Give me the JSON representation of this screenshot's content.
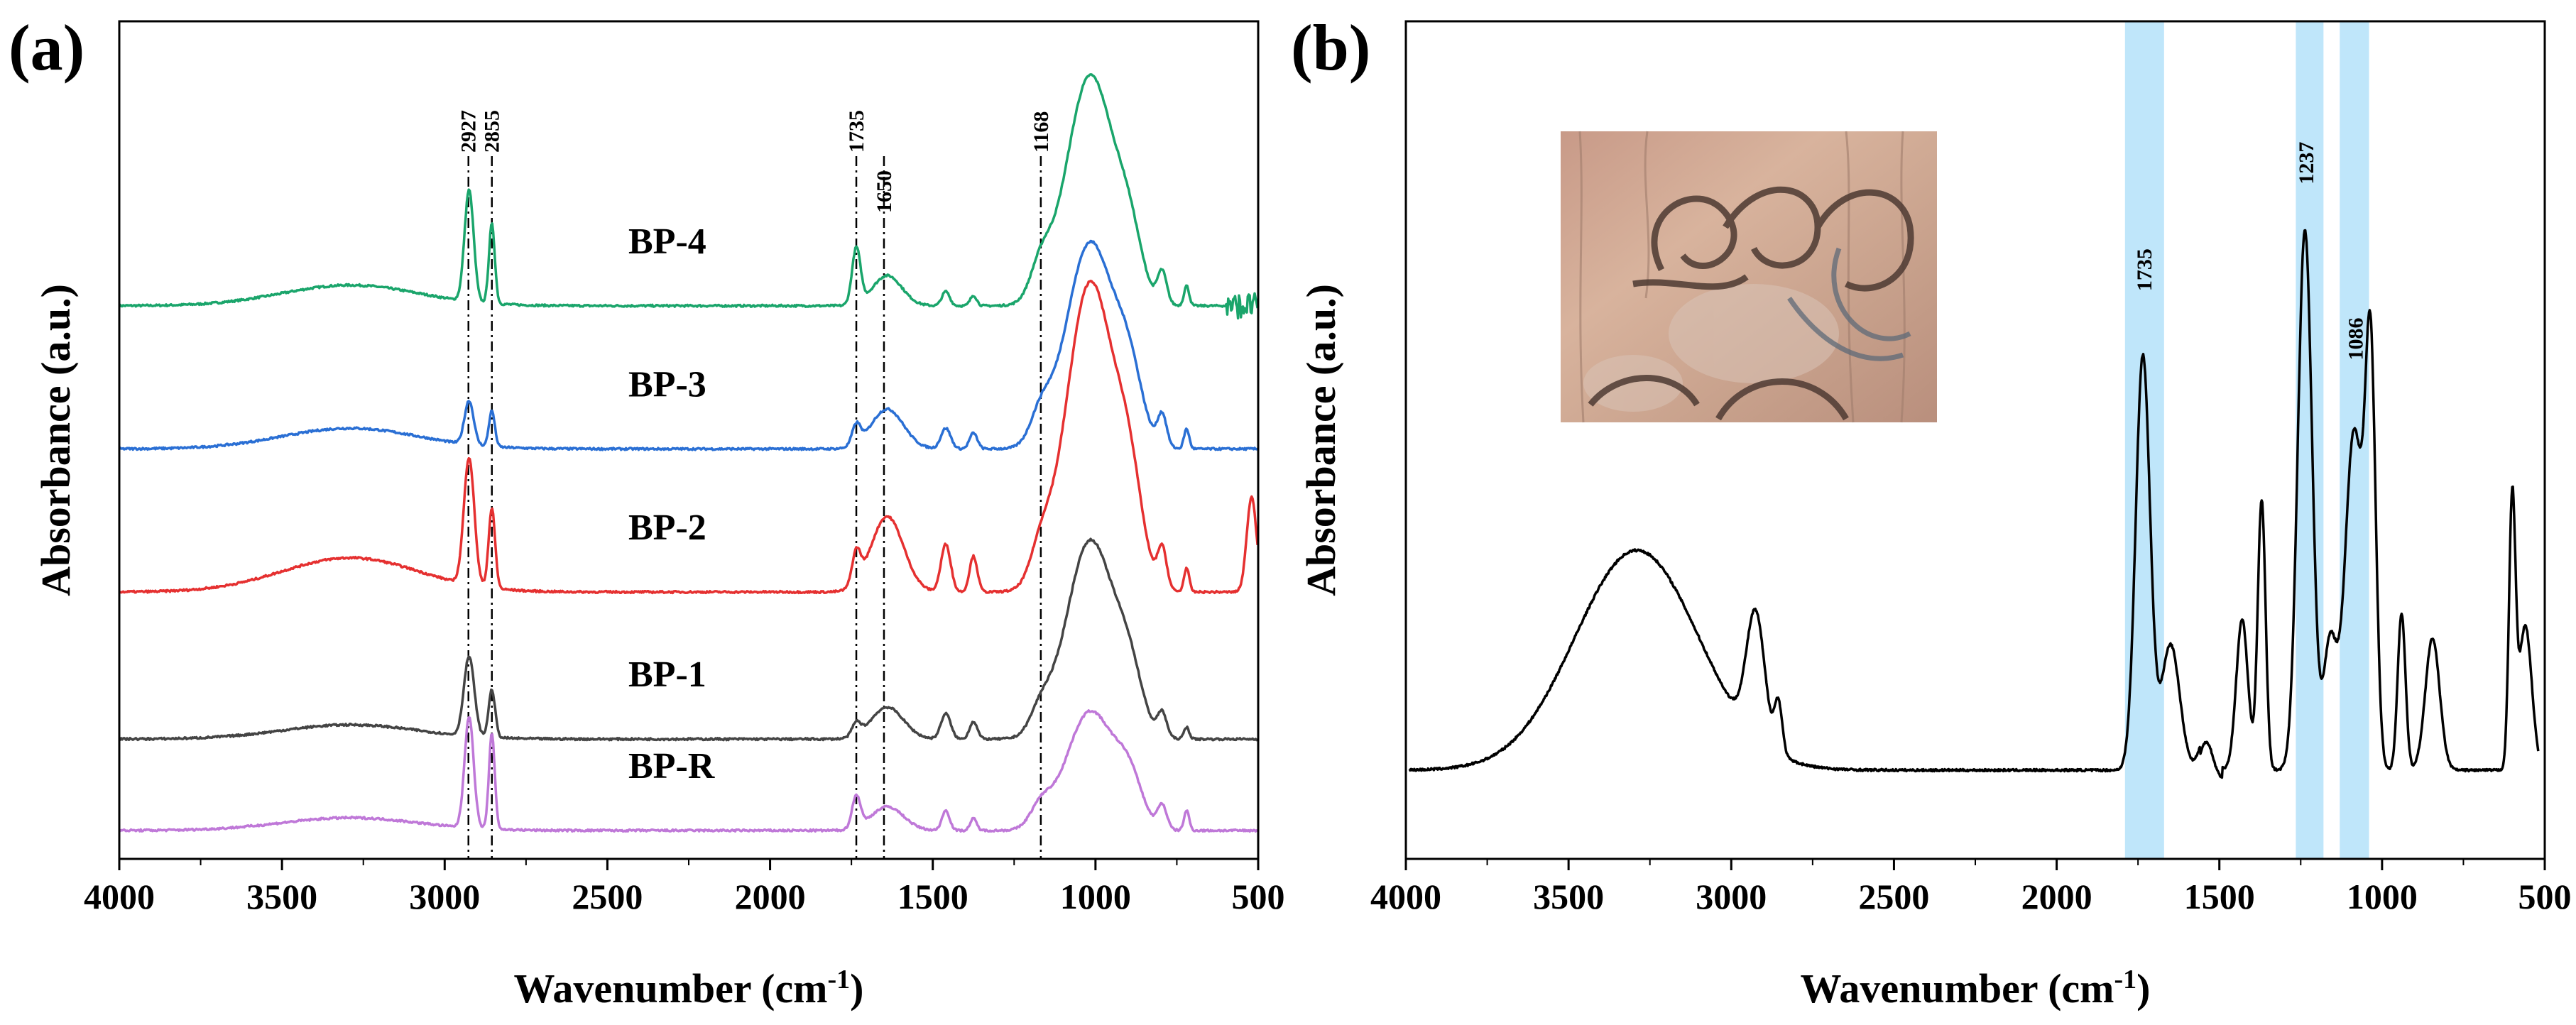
{
  "colors": {
    "BP-4": "#1aa56b",
    "BP-3": "#2a6fd4",
    "BP-2": "#e53030",
    "BP-1": "#444444",
    "BP-R": "#bf78d8",
    "sample": "#000000",
    "highlight": "#bfe6fa"
  },
  "chart_data": [
    {
      "panel": "(a)",
      "type": "line",
      "xlabel": "Wavenumber (cm",
      "xlabel_sup": "-1",
      "xlabel_end": ")",
      "ylabel": "Absorbance (a.u.)",
      "xlim": [
        4000,
        500
      ],
      "x_reversed": true,
      "xticks": [
        "4000",
        "3500",
        "3000",
        "2500",
        "2000",
        "1500",
        "1000",
        "500"
      ],
      "xtick_values": [
        4000,
        3500,
        3000,
        2500,
        2000,
        1500,
        1000,
        500
      ],
      "ylim": [
        0,
        100
      ],
      "peak_lines": [
        {
          "x": 2927,
          "label": "2927"
        },
        {
          "x": 2855,
          "label": "2855"
        },
        {
          "x": 1735,
          "label": "1735"
        },
        {
          "x": 1650,
          "label": "1650"
        },
        {
          "x": 1168,
          "label": "1168"
        }
      ],
      "series": [
        {
          "name": "BP-4",
          "offset": 66,
          "peaks": [
            [
              3290,
              2.6,
              210
            ],
            [
              2925,
              14,
              14
            ],
            [
              2855,
              10,
              9
            ],
            [
              1735,
              7,
              13
            ],
            [
              1640,
              3.8,
              45
            ],
            [
              1460,
              1.8,
              12
            ],
            [
              1375,
              1.3,
              10
            ],
            [
              1168,
              4.0,
              32
            ],
            [
              1015,
              29,
              75
            ],
            [
              895,
              6,
              38
            ],
            [
              795,
              4,
              14
            ],
            [
              720,
              2.5,
              8
            ]
          ],
          "noise_below": 600
        },
        {
          "name": "BP-3",
          "offset": 48,
          "peaks": [
            [
              3290,
              2.6,
              210
            ],
            [
              2925,
              5.5,
              14
            ],
            [
              2855,
              4.5,
              9
            ],
            [
              1735,
              2.5,
              13
            ],
            [
              1640,
              5.0,
              50
            ],
            [
              1460,
              2.6,
              15
            ],
            [
              1375,
              2.0,
              12
            ],
            [
              1168,
              3.5,
              32
            ],
            [
              1015,
              26,
              75
            ],
            [
              895,
              7,
              40
            ],
            [
              795,
              4,
              14
            ],
            [
              720,
              2.5,
              8
            ]
          ],
          "noise_below": 0
        },
        {
          "name": "BP-2",
          "offset": 30,
          "peaks": [
            [
              3290,
              4.3,
              210
            ],
            [
              2925,
              16,
              16
            ],
            [
              2855,
              10,
              10
            ],
            [
              1735,
              4.0,
              13
            ],
            [
              1640,
              9.5,
              50
            ],
            [
              1460,
              6.0,
              15
            ],
            [
              1375,
              4.5,
              12
            ],
            [
              1168,
              4.0,
              32
            ],
            [
              1015,
              39,
              75
            ],
            [
              895,
              10,
              40
            ],
            [
              795,
              5,
              14
            ],
            [
              720,
              3,
              8
            ],
            [
              520,
              12,
              15
            ]
          ],
          "noise_below": 0
        },
        {
          "name": "BP-1",
          "offset": 11.5,
          "peaks": [
            [
              3290,
              1.8,
              210
            ],
            [
              2925,
              10,
              16
            ],
            [
              2855,
              6,
              10
            ],
            [
              1735,
              1.6,
              13
            ],
            [
              1640,
              4.0,
              50
            ],
            [
              1460,
              3.2,
              15
            ],
            [
              1375,
              2.2,
              12
            ],
            [
              1168,
              2.8,
              32
            ],
            [
              1015,
              25,
              75
            ],
            [
              895,
              6,
              40
            ],
            [
              795,
              3,
              14
            ],
            [
              720,
              1.5,
              8
            ]
          ],
          "noise_below": 0
        },
        {
          "name": "BP-R",
          "offset": 0,
          "peaks": [
            [
              3290,
              1.6,
              210
            ],
            [
              2925,
              14,
              14
            ],
            [
              2855,
              12,
              9
            ],
            [
              1735,
              4.0,
              13
            ],
            [
              1640,
              3.0,
              50
            ],
            [
              1460,
              2.5,
              12
            ],
            [
              1375,
              1.5,
              10
            ],
            [
              1168,
              2.5,
              32
            ],
            [
              1015,
              15,
              75
            ],
            [
              895,
              5,
              40
            ],
            [
              795,
              3,
              14
            ],
            [
              720,
              2.5,
              8
            ]
          ],
          "noise_below": 0
        }
      ],
      "series_labels": [
        "BP-4",
        "BP-3",
        "BP-2",
        "BP-1",
        "BP-R"
      ]
    },
    {
      "panel": "(b)",
      "type": "line",
      "xlabel": "Wavenumber (cm",
      "xlabel_sup": "-1",
      "xlabel_end": ")",
      "ylabel": "Absorbance (a.u.)",
      "xlim": [
        4000,
        500
      ],
      "x_reversed": true,
      "xticks": [
        "4000",
        "3500",
        "3000",
        "2500",
        "2000",
        "1500",
        "1000",
        "500"
      ],
      "xtick_values": [
        4000,
        3500,
        3000,
        2500,
        2000,
        1500,
        1000,
        500
      ],
      "ylim": [
        0,
        100
      ],
      "highlight_bands": [
        [
          1790,
          1670
        ],
        [
          1265,
          1180
        ],
        [
          1130,
          1040
        ]
      ],
      "peak_labels": [
        {
          "x": 1735,
          "y": 74,
          "label": "1735"
        },
        {
          "x": 1237,
          "y": 91,
          "label": "1237"
        },
        {
          "x": 1086,
          "y": 63,
          "label": "1086"
        }
      ],
      "series": [
        {
          "name": "sample",
          "offset": 0,
          "peaks": [
            [
              3290,
              35,
              190
            ],
            [
              2925,
              20,
              28
            ],
            [
              2855,
              8,
              12
            ],
            [
              1735,
              66,
              22
            ],
            [
              1650,
              20,
              28
            ],
            [
              1540,
              6,
              20
            ],
            [
              1430,
              24,
              18
            ],
            [
              1370,
              43,
              12
            ],
            [
              1237,
              86,
              22
            ],
            [
              1160,
              20,
              20
            ],
            [
              1086,
              54,
              28
            ],
            [
              1035,
              62,
              16
            ],
            [
              940,
              25,
              12
            ],
            [
              845,
              21,
              22
            ],
            [
              600,
              42,
              10
            ],
            [
              560,
              23,
              20
            ]
          ]
        }
      ],
      "inset_image": "wooden plank photo with dark spiral drawing"
    }
  ]
}
